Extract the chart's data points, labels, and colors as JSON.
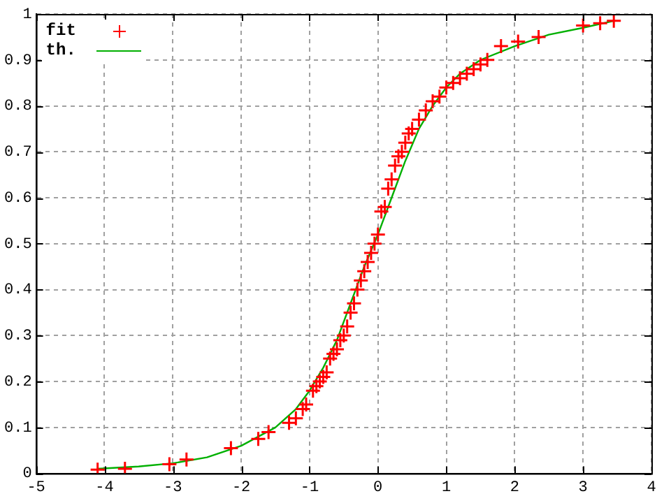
{
  "chart_data": {
    "type": "scatter",
    "xlim": [
      -5,
      4
    ],
    "ylim": [
      0,
      1
    ],
    "xticks": [
      -5,
      -4,
      -3,
      -2,
      -1,
      0,
      1,
      2,
      3,
      4
    ],
    "yticks": [
      0,
      0.1,
      0.2,
      0.3,
      0.4,
      0.5,
      0.6,
      0.7,
      0.8,
      0.9,
      1
    ],
    "grid": true,
    "legend": "top left",
    "series": [
      {
        "name": "fit",
        "type": "scatter",
        "marker": "cross",
        "color": "#ff0000",
        "x": [
          -4.1,
          -3.7,
          -3.05,
          -2.8,
          -2.15,
          -1.75,
          -1.6,
          -1.3,
          -1.2,
          -1.1,
          -1.05,
          -0.95,
          -0.9,
          -0.85,
          -0.8,
          -0.75,
          -0.7,
          -0.65,
          -0.6,
          -0.55,
          -0.5,
          -0.45,
          -0.4,
          -0.35,
          -0.3,
          -0.25,
          -0.2,
          -0.15,
          -0.1,
          -0.05,
          0,
          0.05,
          0.1,
          0.15,
          0.2,
          0.25,
          0.3,
          0.35,
          0.4,
          0.45,
          0.5,
          0.6,
          0.7,
          0.8,
          0.9,
          1,
          1.1,
          1.2,
          1.3,
          1.4,
          1.5,
          1.6,
          1.8,
          2.05,
          2.35,
          3,
          3.25,
          3.45
        ],
        "values": [
          0.008,
          0.01,
          0.02,
          0.03,
          0.055,
          0.075,
          0.09,
          0.11,
          0.12,
          0.14,
          0.15,
          0.18,
          0.19,
          0.2,
          0.21,
          0.22,
          0.25,
          0.26,
          0.27,
          0.29,
          0.3,
          0.32,
          0.35,
          0.37,
          0.4,
          0.42,
          0.44,
          0.46,
          0.48,
          0.5,
          0.52,
          0.57,
          0.58,
          0.62,
          0.64,
          0.67,
          0.69,
          0.7,
          0.72,
          0.74,
          0.75,
          0.77,
          0.79,
          0.81,
          0.82,
          0.84,
          0.85,
          0.86,
          0.87,
          0.88,
          0.89,
          0.9,
          0.93,
          0.94,
          0.95,
          0.975,
          0.98,
          0.985
        ]
      },
      {
        "name": "th.",
        "type": "line",
        "marker": "none",
        "line_style": "solid",
        "color": "#00b000",
        "x": [
          -4.1,
          -3.5,
          -3,
          -2.5,
          -2,
          -1.5,
          -1.2,
          -1,
          -0.8,
          -0.6,
          -0.4,
          -0.2,
          0,
          0.2,
          0.4,
          0.6,
          0.8,
          1,
          1.2,
          1.5,
          2,
          2.5,
          3,
          3.45
        ],
        "values": [
          0.01,
          0.015,
          0.022,
          0.035,
          0.06,
          0.1,
          0.14,
          0.18,
          0.23,
          0.29,
          0.37,
          0.45,
          0.52,
          0.6,
          0.68,
          0.75,
          0.8,
          0.84,
          0.87,
          0.9,
          0.93,
          0.955,
          0.97,
          0.985
        ]
      }
    ]
  }
}
